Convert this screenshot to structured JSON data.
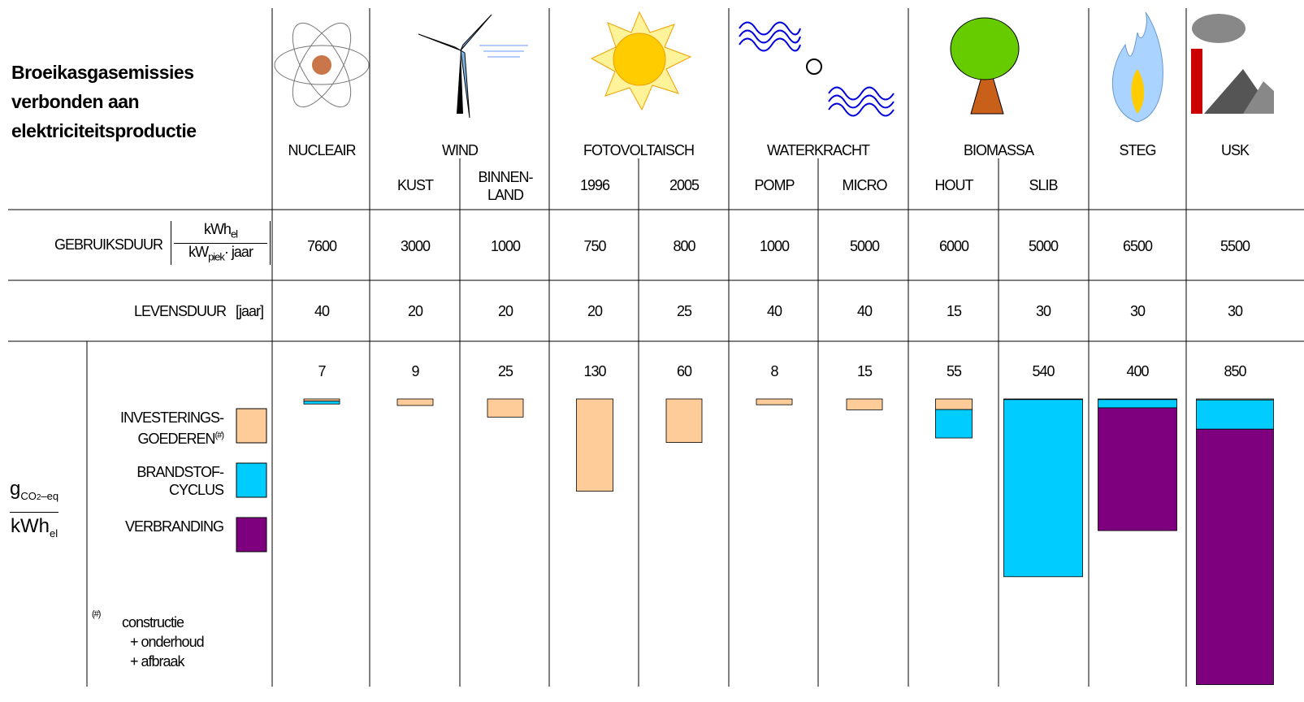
{
  "title_lines": [
    "Broeikasgasemissies",
    "verbonden aan",
    "elektriciteitsproductie"
  ],
  "rows": {
    "gebruiksduur": {
      "label": "GEBRUIKSDUUR",
      "num": "kWh",
      "num_sub": "el",
      "den": "kW",
      "den_sub": "piek",
      "den_rest": "· jaar"
    },
    "levensduur": {
      "label": "LEVENSDUUR",
      "unit": "[jaar]"
    }
  },
  "ylabel": {
    "num": "g",
    "num_sub": "CO",
    "num_sub2": "2",
    "num_rest": "–eq",
    "den": "kWh",
    "den_sub": "el"
  },
  "legend": [
    {
      "label": "INVESTERINGS-\nGOEDEREN",
      "mark": "(#)",
      "color": "#fdcc98"
    },
    {
      "label": "BRANDSTOF-\nCYCLUS",
      "color": "#00ccff"
    },
    {
      "label": "VERBRANDING",
      "color": "#7f007f"
    }
  ],
  "footnote": {
    "mark": "(#)",
    "lines": [
      "constructie",
      "+ onderhoud",
      "+ afbraak"
    ]
  },
  "groups": [
    {
      "label": "NUCLEAIR",
      "columns": [
        {
          "gebruiksduur": 7600,
          "levensduur": 40,
          "total": 7,
          "segments": [
            3,
            4,
            null
          ]
        }
      ]
    },
    {
      "label": "WIND",
      "columns": [
        {
          "name": "KUST",
          "gebruiksduur": 3000,
          "levensduur": 20,
          "total": 9,
          "segments": [
            9,
            null,
            null
          ]
        },
        {
          "name": "BINNEN-\nLAND",
          "gebruiksduur": 1000,
          "levensduur": 20,
          "total": 25,
          "segments": [
            25,
            null,
            null
          ]
        }
      ]
    },
    {
      "label": "FOTOVOLTAISCH",
      "columns": [
        {
          "name": "1996",
          "gebruiksduur": 750,
          "levensduur": 20,
          "total": 130,
          "segments": [
            130,
            null,
            null
          ]
        },
        {
          "name": "2005",
          "gebruiksduur": 800,
          "levensduur": 25,
          "total": 60,
          "segments": [
            60,
            null,
            null
          ]
        }
      ]
    },
    {
      "label": "WATERKRACHT",
      "columns": [
        {
          "name": "POMP",
          "gebruiksduur": 1000,
          "levensduur": 40,
          "total": 8,
          "segments": [
            8,
            null,
            null
          ]
        },
        {
          "name": "MICRO",
          "gebruiksduur": 5000,
          "levensduur": 40,
          "total": 15,
          "segments": [
            15,
            null,
            null
          ]
        }
      ]
    },
    {
      "label": "BIOMASSA",
      "columns": [
        {
          "name": "HOUT",
          "gebruiksduur": 6000,
          "levensduur": 15,
          "total": 55,
          "segments": [
            15,
            40,
            null
          ]
        },
        {
          "name": "SLIB",
          "gebruiksduur": 5000,
          "levensduur": 30,
          "total": 540,
          "segments": [
            2,
            538,
            null
          ]
        }
      ]
    },
    {
      "label": "STEG",
      "columns": [
        {
          "gebruiksduur": 6500,
          "levensduur": 30,
          "total": 400,
          "segments": [
            2,
            25,
            373
          ]
        }
      ]
    },
    {
      "label": "USK",
      "columns": [
        {
          "gebruiksduur": 5500,
          "levensduur": 30,
          "total": 850,
          "segments": [
            3,
            87,
            760
          ]
        }
      ]
    }
  ]
}
